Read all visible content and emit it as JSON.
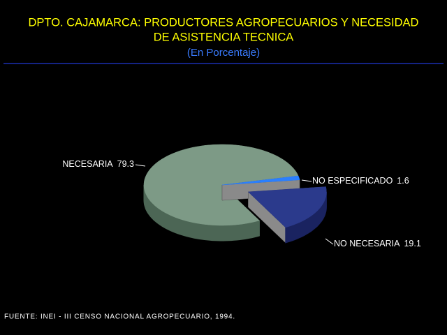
{
  "chart_data": {
    "type": "pie",
    "title": [
      "DPTO. CAJAMARCA: PRODUCTORES AGROPECUARIOS Y NECESIDAD",
      "DE ASISTENCIA TECNICA"
    ],
    "subtitle": "(En Porcentaje)",
    "categories": [
      "NO ESPECIFICADO",
      "NO NECESARIA",
      "NECESARIA"
    ],
    "values": [
      1.6,
      19.1,
      79.3
    ],
    "colors": [
      "#2a7fff",
      "#2b3a8c",
      "#7d9a86"
    ],
    "side_colors": [
      "#1a4fb0",
      "#1a2360",
      "#4c6655"
    ],
    "exploded": [
      false,
      true,
      false
    ],
    "source": "FUENTE: INEI - III CENSO NACIONAL AGROPECUARIO, 1994."
  }
}
